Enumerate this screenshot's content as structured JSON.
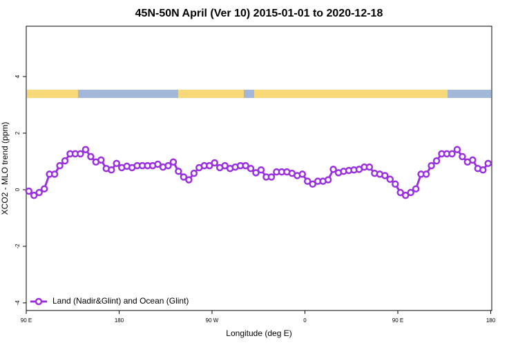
{
  "chart_data": {
    "type": "line",
    "title": "45N-50N April (Ver 10)   2015-01-01 to 2020-12-18",
    "x_label": "Longitude (deg E)",
    "y_label": "XCO2 - MLO trend (ppm)",
    "xlim": [
      90,
      541
    ],
    "ylim": [
      -4.27,
      5.78
    ],
    "xticks": [
      {
        "value": 90,
        "label": "90 E"
      },
      180,
      {
        "value": 270,
        "label": "90 W"
      },
      {
        "value": 360,
        "label": "0"
      },
      {
        "value": 450,
        "label": "90 E"
      },
      {
        "value": 540,
        "label": "180"
      }
    ],
    "yticks": [
      -4,
      -2,
      0,
      2,
      4
    ],
    "legend": "bottom-left",
    "x": [
      92.5,
      97.5,
      102.5,
      107.5,
      112.5,
      117.5,
      122.5,
      127.5,
      132.5,
      137.5,
      142.5,
      147.5,
      152.5,
      157.5,
      162.5,
      167.5,
      172.5,
      177.5,
      182.5,
      187.5,
      192.5,
      197.5,
      202.5,
      207.5,
      212.5,
      217.5,
      222.5,
      227.5,
      232.5,
      237.5,
      242.5,
      247.5,
      252.5,
      257.5,
      262.5,
      267.5,
      272.5,
      277.5,
      282.5,
      287.5,
      292.5,
      297.5,
      302.5,
      307.5,
      312.5,
      317.5,
      322.5,
      327.5,
      332.5,
      337.5,
      342.5,
      347.5,
      352.5,
      357.5,
      362.5,
      367.5,
      372.5,
      377.5,
      382.5,
      387.5,
      392.5,
      397.5,
      402.5,
      407.5,
      412.5,
      417.5,
      422.5,
      427.5,
      432.5,
      437.5,
      442.5,
      447.5,
      452.5,
      457.5,
      462.5,
      467.5,
      472.5,
      477.5,
      482.5,
      487.5,
      492.5,
      497.5,
      502.5,
      507.5,
      512.5,
      517.5,
      522.5,
      527.5,
      532.5,
      537.5
    ],
    "series": [
      {
        "name": "Land (Nadir&Glint) and Ocean (Glint)",
        "color": "#9b30e0",
        "values": [
          -0.05,
          -0.2,
          -0.1,
          0.03,
          0.55,
          0.55,
          0.85,
          1.02,
          1.27,
          1.27,
          1.27,
          1.42,
          1.17,
          0.98,
          1.05,
          0.75,
          0.7,
          0.93,
          0.78,
          0.83,
          0.78,
          0.85,
          0.85,
          0.85,
          0.85,
          0.9,
          0.8,
          0.85,
          0.98,
          0.65,
          0.45,
          0.35,
          0.58,
          0.78,
          0.85,
          0.85,
          0.95,
          0.78,
          0.85,
          0.75,
          0.8,
          0.85,
          0.85,
          0.75,
          0.6,
          0.7,
          0.45,
          0.45,
          0.63,
          0.63,
          0.63,
          0.58,
          0.5,
          0.55,
          0.3,
          0.2,
          0.3,
          0.3,
          0.35,
          0.72,
          0.6,
          0.65,
          0.68,
          0.7,
          0.72,
          0.8,
          0.8,
          0.58,
          0.55,
          0.5,
          0.37,
          0.2,
          -0.1,
          -0.2,
          -0.1,
          0.03,
          0.55,
          0.55,
          0.85,
          1.02,
          1.27,
          1.27,
          1.27,
          1.42,
          1.17,
          0.98,
          1.05,
          0.75,
          0.7,
          0.93
        ]
      }
    ]
  }
}
